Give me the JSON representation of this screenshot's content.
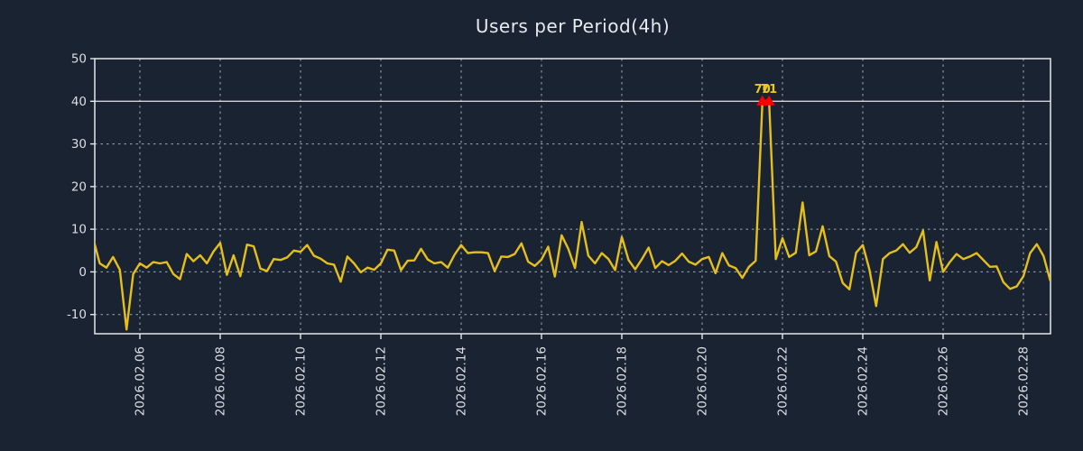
{
  "chart_data": {
    "type": "line",
    "title": "Users per Period(4h)",
    "xlabel": "",
    "ylabel": "",
    "period": "4h",
    "x_tick_labels": [
      "2026.02.06",
      "2026.02.08",
      "2026.02.10",
      "2026.02.12",
      "2026.02.14",
      "2026.02.16",
      "2026.02.18",
      "2026.02.20",
      "2026.02.22",
      "2026.02.24",
      "2026.02.26",
      "2026.02.28"
    ],
    "y_ticks": [
      50,
      40,
      30,
      20,
      10,
      0,
      -10
    ],
    "y_gridlines": [
      30,
      20,
      10,
      0,
      -10
    ],
    "ylim": [
      -14.5,
      50
    ],
    "grid": "dashed",
    "legend": "none",
    "clip_line_value": 40,
    "clipped_point_labels": [
      "70",
      "71"
    ],
    "points_before_first_tick": 7,
    "points_per_tick_interval": 12,
    "series": [
      {
        "name": "users",
        "values": [
          8,
          2,
          1,
          3.5,
          0.5,
          -13.5,
          -0.5,
          2,
          1,
          2.3,
          2,
          2.3,
          -0.5,
          -1.7,
          4.2,
          2.5,
          3.9,
          2,
          4.8,
          6.8,
          -0.7,
          3.9,
          -1,
          6.4,
          6,
          0.8,
          0.2,
          3,
          2.8,
          3.4,
          5,
          4.7,
          6.3,
          3.8,
          3.1,
          2,
          1.7,
          -2.3,
          3.6,
          2,
          -0.1,
          1,
          0.5,
          2,
          5.2,
          5,
          0.4,
          2.6,
          2.7,
          5.4,
          2.9,
          2,
          2.3,
          1,
          4,
          6.3,
          4.4,
          4.6,
          4.6,
          4.4,
          0.2,
          3.6,
          3.5,
          4.2,
          6.7,
          2.4,
          1.4,
          2.9,
          5.9,
          -1.1,
          8.6,
          5.4,
          0.9,
          11.7,
          3.8,
          2,
          4.4,
          3,
          0.4,
          8.2,
          2.8,
          0.6,
          3,
          5.7,
          0.9,
          2.5,
          1.6,
          2.6,
          4.3,
          2.4,
          1.7,
          3,
          3.5,
          -0.3,
          4.4,
          1.5,
          0.9,
          -1.4,
          1.2,
          2.6,
          70,
          71,
          3,
          7.9,
          3.5,
          4.5,
          16.3,
          3.9,
          4.8,
          10.7,
          3.7,
          2.4,
          -2.6,
          -4.1,
          4.5,
          6.3,
          0.5,
          -8,
          3,
          4.4,
          5,
          6.5,
          4.5,
          5.8,
          9.7,
          -2,
          7,
          0,
          2.3,
          4.2,
          3,
          3.6,
          4.4,
          2.8,
          1.2,
          1.3,
          -2.4,
          -4,
          -3.4,
          -1,
          4.4,
          6.5,
          3.7,
          -2
        ]
      }
    ],
    "colors": {
      "background": "#1a2332",
      "line": "#e5bf1a",
      "clip_marker": "#ff0000",
      "grid": "#b9c0ca",
      "axis_border": "#e4e7eb",
      "tick_label": "#dbdfe5",
      "title": "#e7eaee",
      "annotation": "#e9c822"
    }
  }
}
